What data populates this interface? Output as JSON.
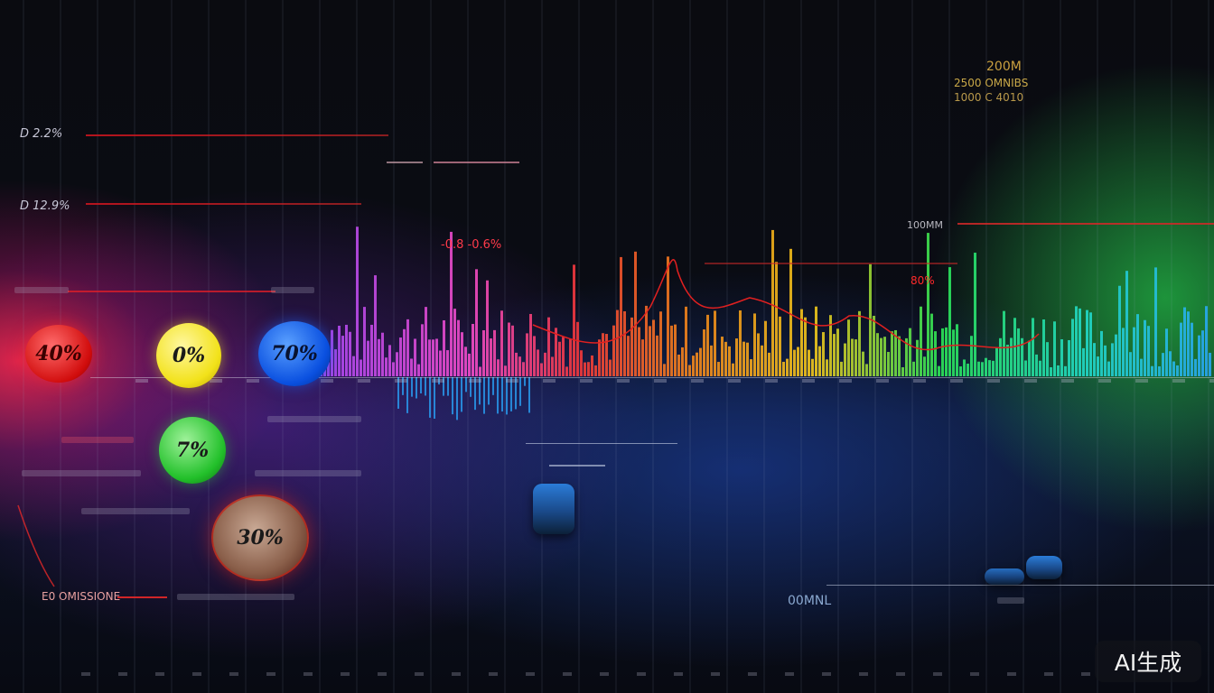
{
  "labels": {
    "top_right_line_1": "200M",
    "top_right_line_2": "2500 OMNIBS",
    "top_right_line_3": "1000 C 4010",
    "left_label_1": "D 2.2%",
    "left_label_2": "D 12.9%",
    "mid_red_label": "-0.8 -0.6%",
    "right_red_label": "80%",
    "bottom_center_label": "00MNL",
    "bottom_left_label": "E0 OMISSIONE",
    "right_gray_label": "100MM"
  },
  "indicators": [
    {
      "label": "40%",
      "color": "#e01010"
    },
    {
      "label": "0%",
      "color": "#f2e21a"
    },
    {
      "label": "70%",
      "color": "#0a50e0"
    },
    {
      "label": "7%",
      "color": "#22c02a"
    },
    {
      "label": "30%",
      "color": "#8a5f4a"
    }
  ],
  "watermark": "AI生成",
  "palette": {
    "purple": "#b04cff",
    "magenta": "#ff4fd0",
    "red": "#ff3a3a",
    "orange": "#ff8a1a",
    "yellow": "#ffd21a",
    "green": "#2ef25a",
    "cyan": "#22e0d0",
    "blue": "#2aa8ff",
    "red_line": "#e02020"
  }
}
